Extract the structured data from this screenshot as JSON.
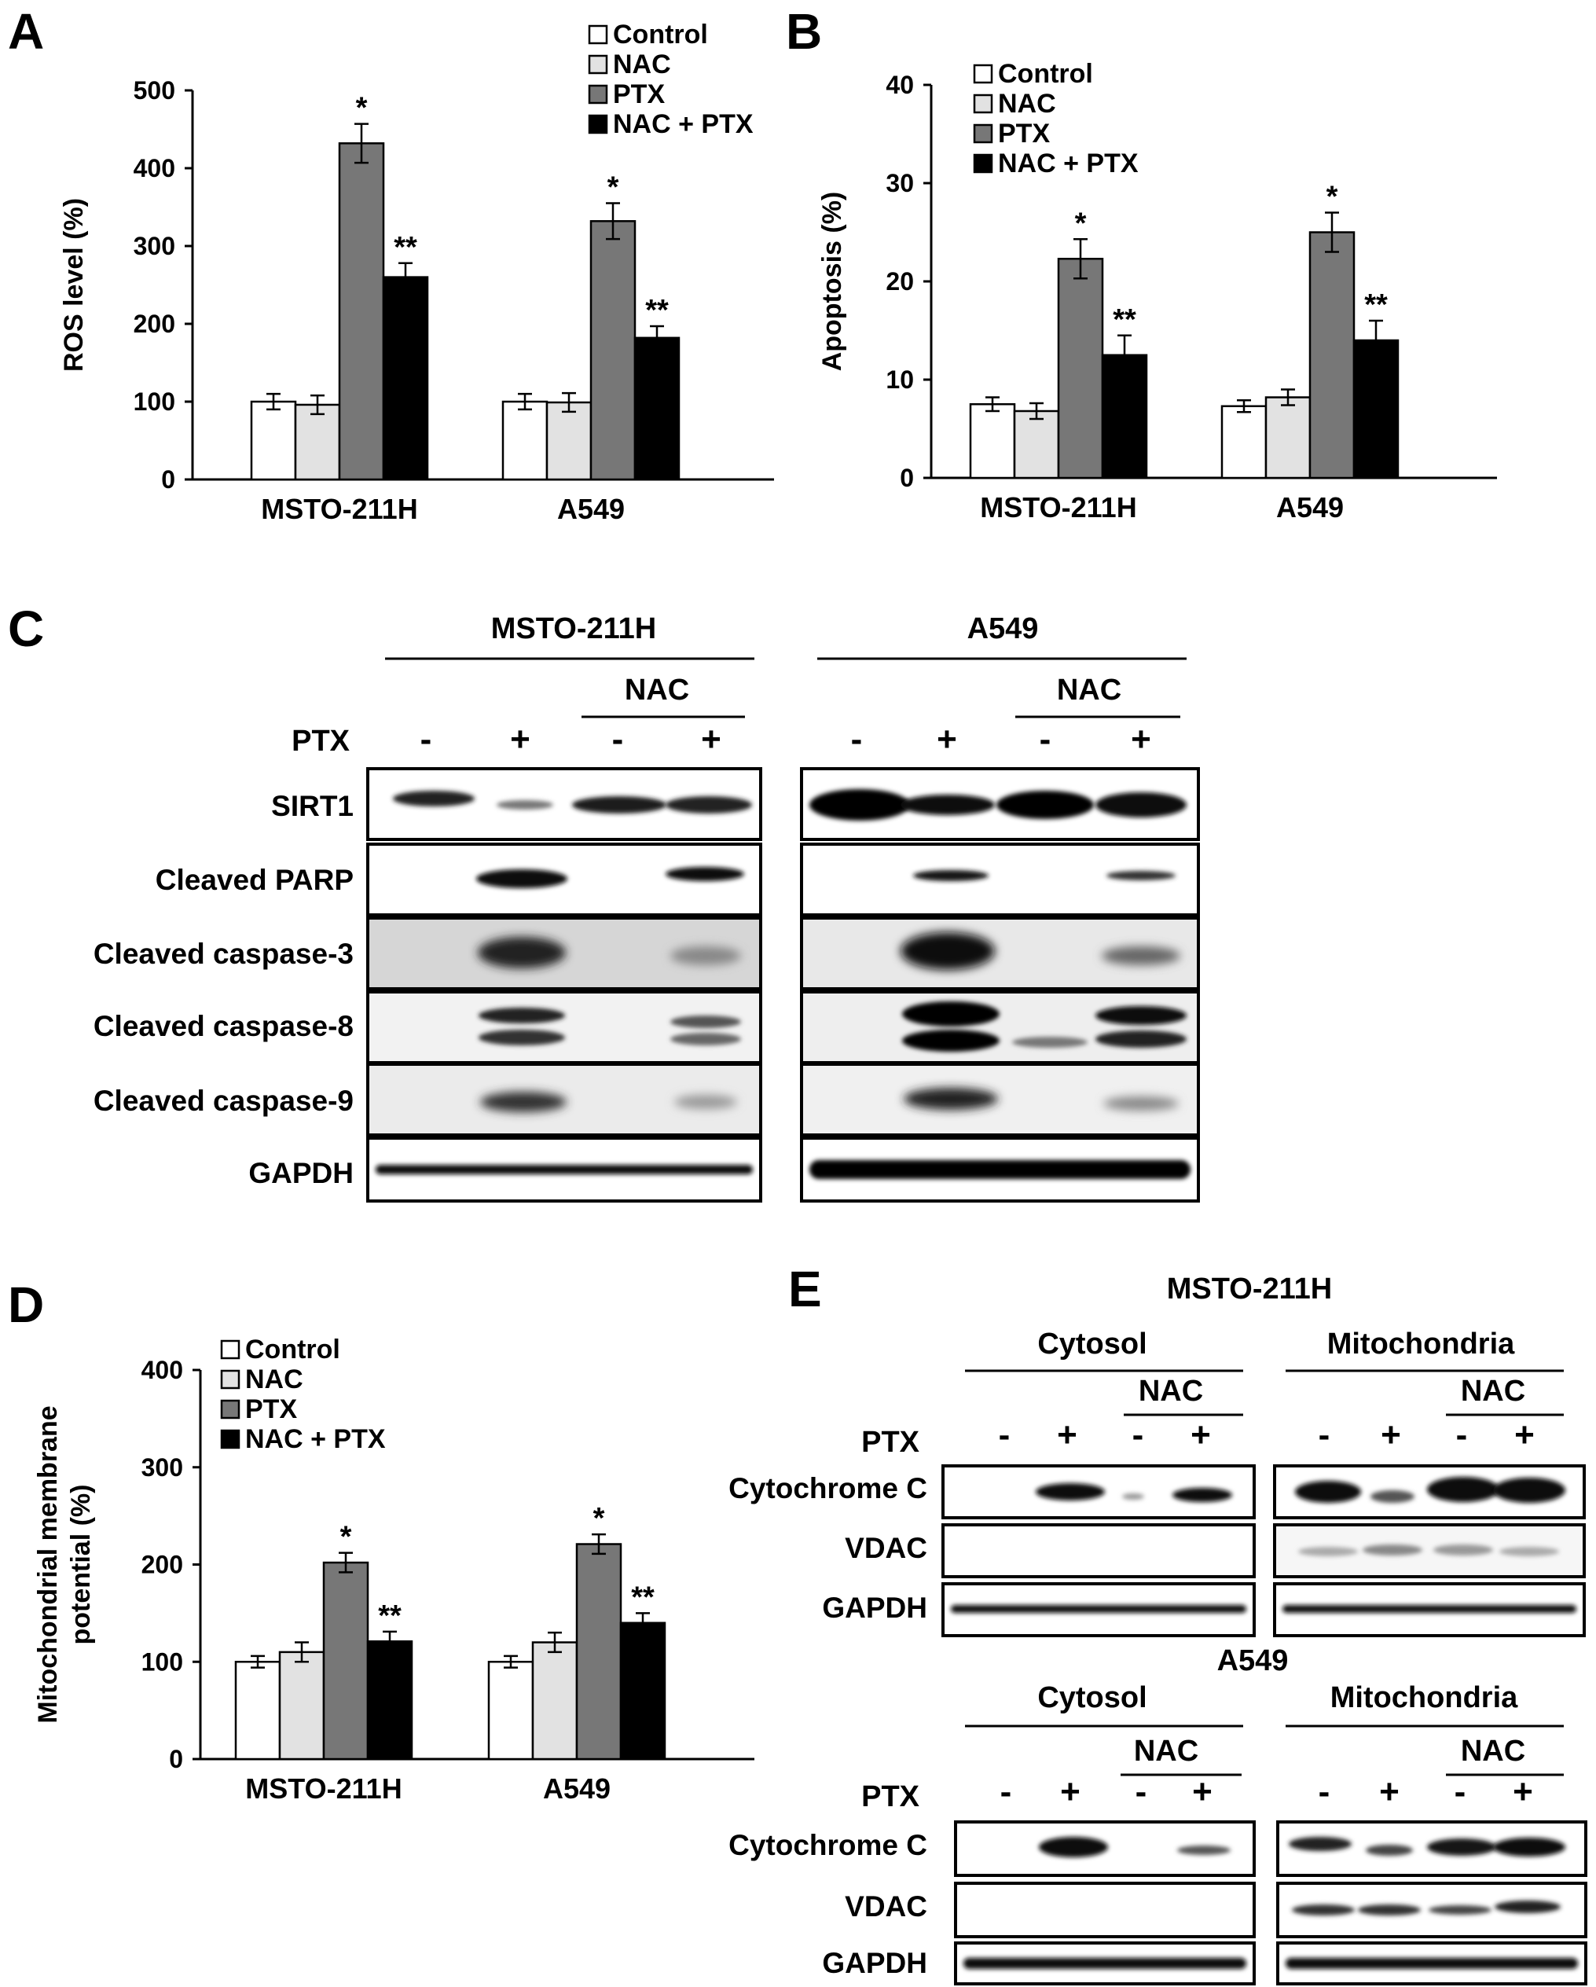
{
  "panels": {
    "A": "A",
    "B": "B",
    "C": "C",
    "D": "D",
    "E": "E"
  },
  "legend": [
    "Control",
    "NAC",
    "PTX",
    "NAC + PTX"
  ],
  "legend_colors": [
    "#ffffff",
    "#e2e2e2",
    "#777777",
    "#000000"
  ],
  "chart_data": [
    {
      "panel": "A",
      "type": "bar",
      "ylabel": "ROS level (%)",
      "categories": [
        "MSTO-211H",
        "A549"
      ],
      "ylim": [
        0,
        500
      ],
      "yticks": [
        "0",
        "100",
        "200",
        "300",
        "400",
        "500"
      ],
      "series": [
        {
          "name": "Control",
          "values": [
            100,
            100
          ],
          "errors": [
            10,
            10
          ]
        },
        {
          "name": "NAC",
          "values": [
            96,
            99
          ],
          "errors": [
            12,
            12
          ]
        },
        {
          "name": "PTX",
          "values": [
            432,
            332
          ],
          "errors": [
            25,
            23
          ]
        },
        {
          "name": "NAC + PTX",
          "values": [
            260,
            182
          ],
          "errors": [
            18,
            15
          ]
        }
      ],
      "annotations": [
        [
          "",
          "",
          "*",
          "**"
        ],
        [
          "",
          "",
          "*",
          "**"
        ]
      ]
    },
    {
      "panel": "B",
      "type": "bar",
      "ylabel": "Apoptosis (%)",
      "categories": [
        "MSTO-211H",
        "A549"
      ],
      "ylim": [
        0,
        40
      ],
      "yticks": [
        "0",
        "10",
        "20",
        "30",
        "40"
      ],
      "series": [
        {
          "name": "Control",
          "values": [
            7.5,
            7.3
          ],
          "errors": [
            0.7,
            0.6
          ]
        },
        {
          "name": "NAC",
          "values": [
            6.8,
            8.2
          ],
          "errors": [
            0.8,
            0.8
          ]
        },
        {
          "name": "PTX",
          "values": [
            22.3,
            25.0
          ],
          "errors": [
            2.0,
            2.0
          ]
        },
        {
          "name": "NAC + PTX",
          "values": [
            12.5,
            14.0
          ],
          "errors": [
            2.0,
            2.0
          ]
        }
      ],
      "annotations": [
        [
          "",
          "",
          "*",
          "**"
        ],
        [
          "",
          "",
          "*",
          "**"
        ]
      ]
    },
    {
      "panel": "D",
      "type": "bar",
      "ylabel": [
        "Mitochondrial membrane",
        "potential (%)"
      ],
      "categories": [
        "MSTO-211H",
        "A549"
      ],
      "ylim": [
        0,
        400
      ],
      "yticks": [
        "0",
        "100",
        "200",
        "300",
        "400"
      ],
      "series": [
        {
          "name": "Control",
          "values": [
            100,
            100
          ],
          "errors": [
            6,
            6
          ]
        },
        {
          "name": "NAC",
          "values": [
            110,
            120
          ],
          "errors": [
            10,
            10
          ]
        },
        {
          "name": "PTX",
          "values": [
            202,
            221
          ],
          "errors": [
            10,
            10
          ]
        },
        {
          "name": "NAC + PTX",
          "values": [
            121,
            140
          ],
          "errors": [
            10,
            10
          ]
        }
      ],
      "annotations": [
        [
          "",
          "",
          "*",
          "**"
        ],
        [
          "",
          "",
          "*",
          "**"
        ]
      ]
    }
  ],
  "blot_c": {
    "cell_lines": [
      "MSTO-211H",
      "A549"
    ],
    "nac_label": "NAC",
    "ptx_label": "PTX",
    "ptx_signs": [
      "-",
      "+",
      "-",
      "+"
    ],
    "rows": [
      "SIRT1",
      "Cleaved PARP",
      "Cleaved caspase-3",
      "Cleaved caspase-8",
      "Cleaved caspase-9",
      "GAPDH"
    ]
  },
  "blot_e": {
    "groups": [
      "MSTO-211H",
      "A549"
    ],
    "fractions": [
      "Cytosol",
      "Mitochondria"
    ],
    "nac_label": "NAC",
    "ptx_label": "PTX",
    "ptx_signs": [
      "-",
      "+",
      "-",
      "+"
    ],
    "rows": [
      "Cytochrome C",
      "VDAC",
      "GAPDH"
    ]
  }
}
